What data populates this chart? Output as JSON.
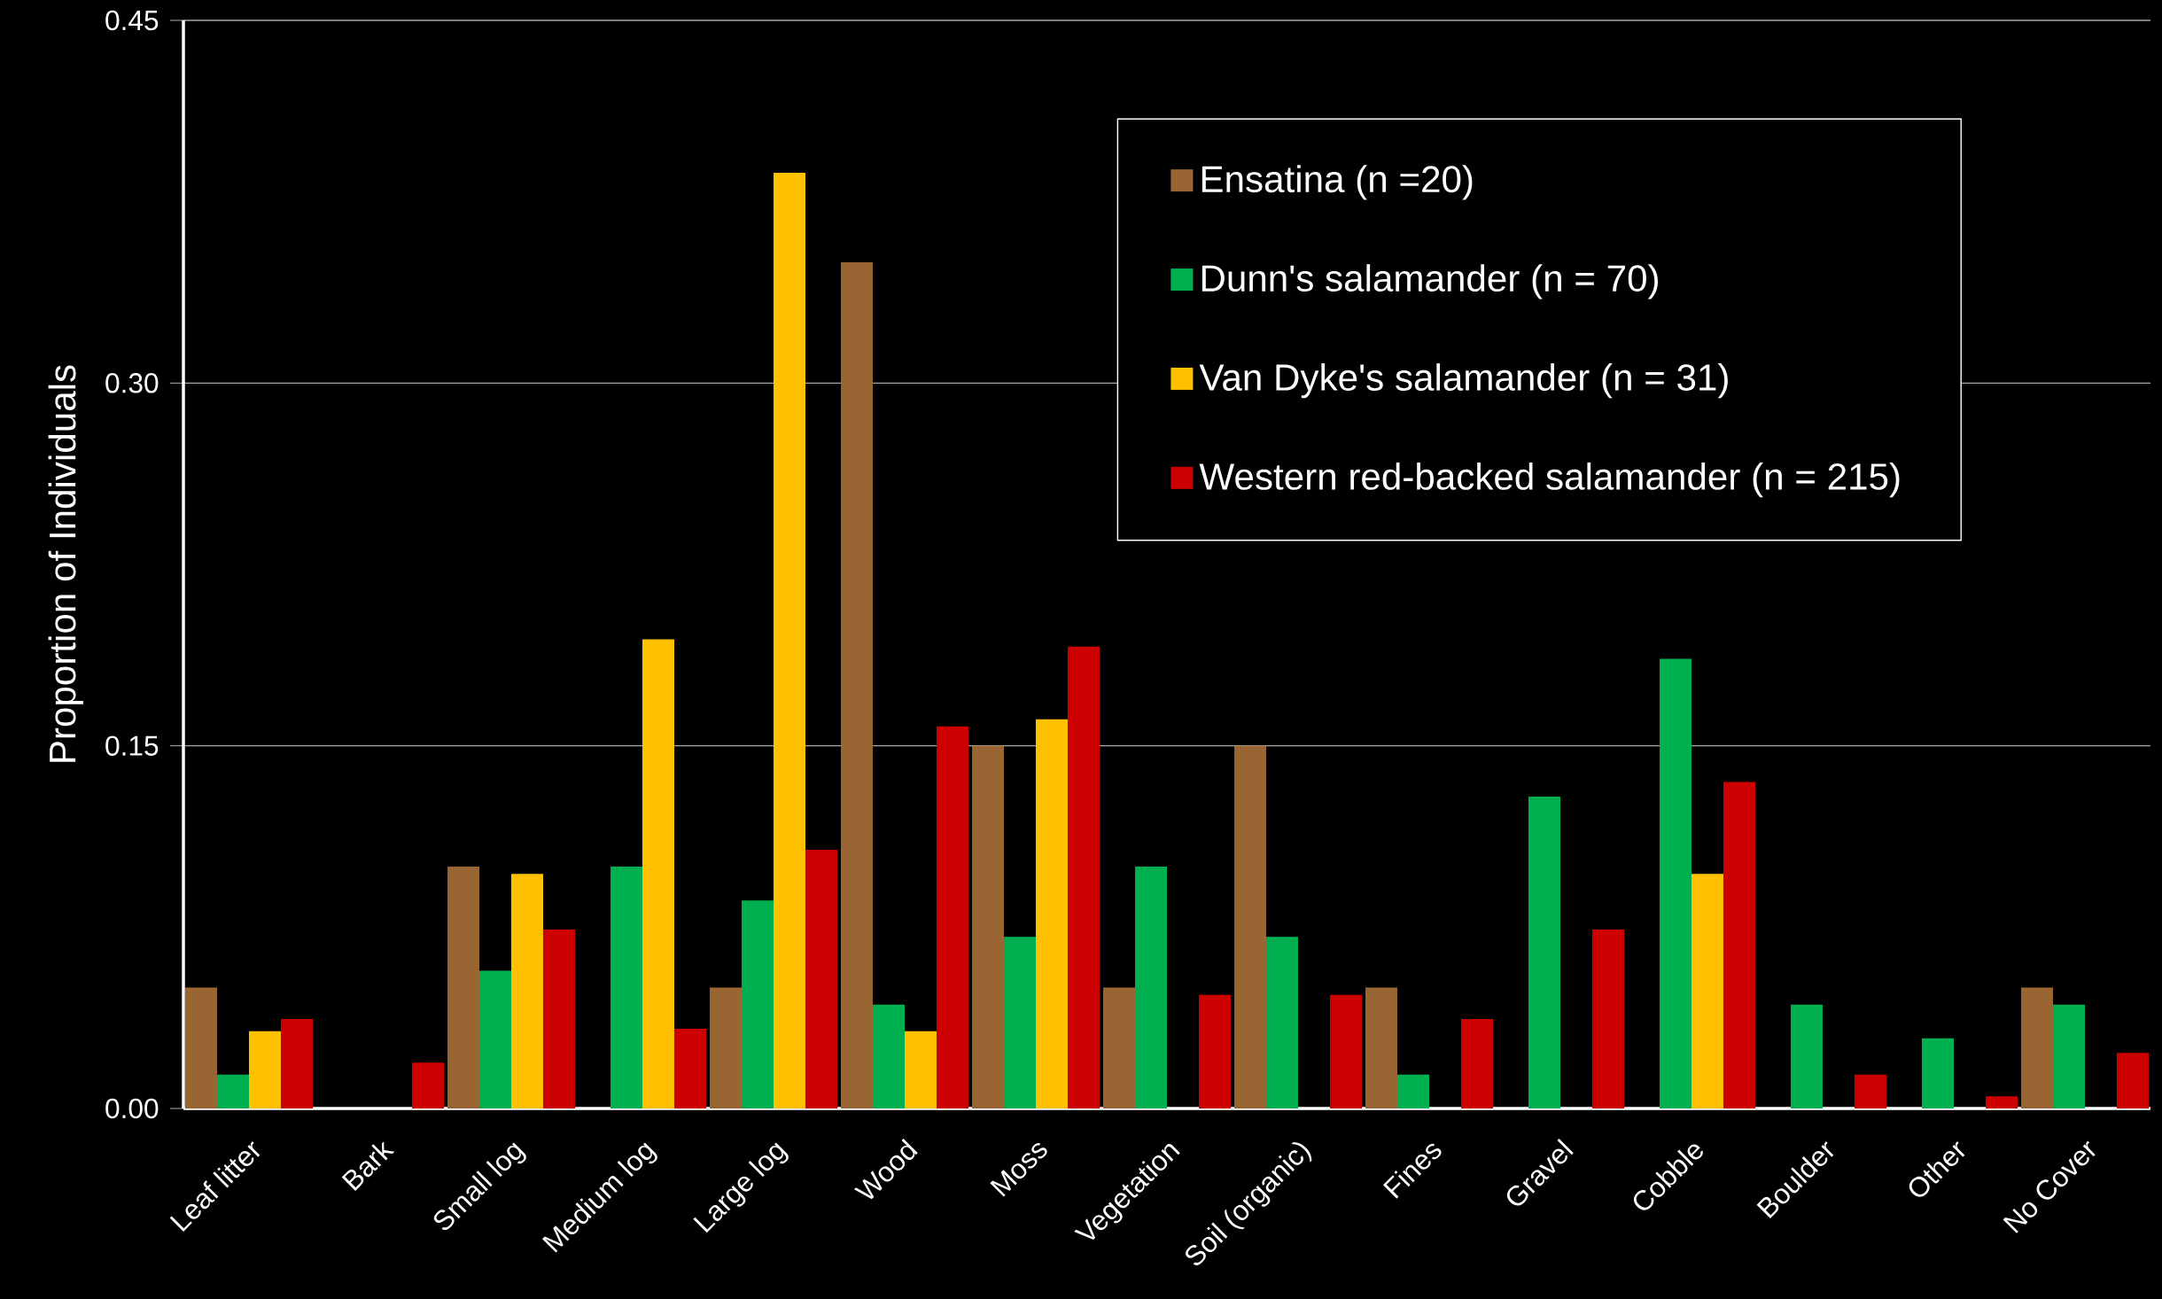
{
  "chart_data": {
    "type": "bar",
    "ylabel": "Proportion of Individuals",
    "categories": [
      "Leaf litter",
      "Bark",
      "Small log",
      "Medium log",
      "Large log",
      "Wood",
      "Moss",
      "Vegetation",
      "Soil (organic)",
      "Fines",
      "Gravel",
      "Cobble",
      "Boulder",
      "Other",
      "No Cover"
    ],
    "series": [
      {
        "name": "Ensatina (n =20)",
        "color": "#996633",
        "values": [
          0.05,
          0,
          0.1,
          0,
          0.05,
          0.35,
          0.15,
          0.05,
          0.15,
          0.05,
          0,
          0,
          0,
          0,
          0.05
        ]
      },
      {
        "name": "Dunn's salamander (n = 70)",
        "color": "#00b050",
        "values": [
          0.014,
          0,
          0.057,
          0.1,
          0.086,
          0.043,
          0.071,
          0.1,
          0.071,
          0.014,
          0.129,
          0.186,
          0.043,
          0.029,
          0.043
        ]
      },
      {
        "name": "Van Dyke's salamander (n = 31)",
        "color": "#ffc000",
        "values": [
          0.032,
          0,
          0.097,
          0.194,
          0.387,
          0.032,
          0.161,
          0,
          0,
          0,
          0,
          0.097,
          0,
          0,
          0
        ]
      },
      {
        "name": "Western red-backed salamander (n = 215)",
        "color": "#cc0000",
        "values": [
          0.037,
          0.019,
          0.074,
          0.033,
          0.107,
          0.158,
          0.191,
          0.047,
          0.047,
          0.037,
          0.074,
          0.135,
          0.014,
          0.005,
          0.023
        ]
      }
    ],
    "ylim": [
      0,
      0.45
    ],
    "yticks": [
      {
        "value": 0,
        "label": "0.00"
      },
      {
        "value": 0.15,
        "label": "0.15"
      },
      {
        "value": 0.3,
        "label": "0.30"
      },
      {
        "value": 0.45,
        "label": "0.45"
      }
    ],
    "grid": "y",
    "legend": "top right"
  }
}
